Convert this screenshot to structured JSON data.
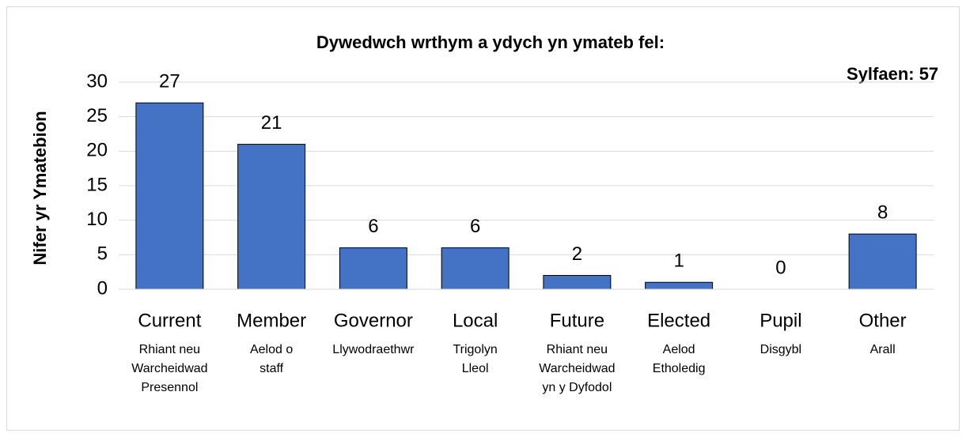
{
  "chart_data": {
    "type": "bar",
    "title": "Dywedwch wrthym a ydych yn ymateb fel:",
    "annotation": "Sylfaen: 57",
    "y_label": "Nifer yr Ymatebion",
    "categories": [
      "Current",
      "Member",
      "Governor",
      "Local",
      "Future",
      "Elected",
      "Pupil",
      "Other"
    ],
    "sub_labels": [
      [
        "Rhiant neu",
        "Warcheidwad",
        "Presennol"
      ],
      [
        "Aelod o",
        "staff"
      ],
      [
        "Llywodraethwr"
      ],
      [
        "Trigolyn",
        "Lleol"
      ],
      [
        "Rhiant neu",
        "Warcheidwad",
        "yn y Dyfodol"
      ],
      [
        "Aelod",
        "Etholedig"
      ],
      [
        "Disgybl"
      ],
      [
        "Arall"
      ]
    ],
    "values": [
      27,
      21,
      6,
      6,
      2,
      1,
      0,
      8
    ],
    "color": "#4472c4",
    "ylim": [
      0,
      30
    ],
    "yticks": [
      0,
      5,
      10,
      15,
      20,
      25,
      30
    ],
    "grid": true
  }
}
